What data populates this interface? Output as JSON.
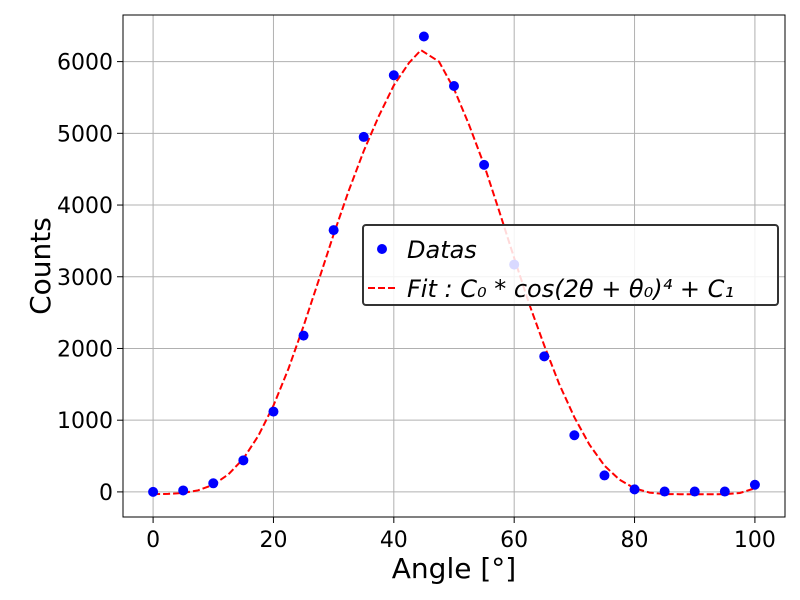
{
  "chart_data": {
    "type": "scatter",
    "xlabel": "Angle [°]",
    "ylabel": "Counts",
    "xlim": [
      -5,
      105
    ],
    "ylim": [
      -350,
      6650
    ],
    "xticks": [
      0,
      20,
      40,
      60,
      80,
      100
    ],
    "yticks": [
      0,
      1000,
      2000,
      3000,
      4000,
      5000,
      6000
    ],
    "grid": true,
    "legend_position": "center-right",
    "series": [
      {
        "name": "Datas",
        "kind": "scatter",
        "color": "#0000ff",
        "x": [
          0,
          5,
          10,
          15,
          20,
          25,
          30,
          35,
          40,
          45,
          50,
          55,
          60,
          65,
          70,
          75,
          80,
          85,
          90,
          95,
          100
        ],
        "y": [
          0,
          20,
          120,
          440,
          1120,
          2180,
          3650,
          4950,
          5810,
          6350,
          5660,
          4560,
          3170,
          1890,
          790,
          230,
          35,
          5,
          5,
          5,
          100
        ]
      },
      {
        "name": "Fit : C₀ * cos(2θ + θ₀)⁴ + C₁",
        "kind": "line",
        "style": "dashed",
        "color": "#ff0000",
        "x": [
          0,
          2.5,
          5,
          7.5,
          10,
          12.5,
          15,
          17.5,
          20,
          22.5,
          25,
          27.5,
          30,
          32.5,
          35,
          37.5,
          40,
          42.5,
          44.5,
          47.5,
          50,
          52.5,
          55,
          57.5,
          60,
          62.5,
          65,
          67.5,
          70,
          72.5,
          75,
          77.5,
          80,
          82.5,
          85,
          87.5,
          90,
          92.5,
          95,
          97.5,
          100
        ],
        "y": [
          -30,
          -28,
          -16,
          22,
          101,
          242,
          465,
          784,
          1205,
          1720,
          2310,
          2946,
          3589,
          4199,
          4752,
          5240,
          5668,
          5980,
          6160,
          6000,
          5620,
          5120,
          4560,
          3920,
          3260,
          2620,
          2040,
          1500,
          1040,
          660,
          365,
          170,
          50,
          -10,
          -30,
          -32,
          -34,
          -33,
          -30,
          -15,
          50
        ]
      }
    ]
  }
}
